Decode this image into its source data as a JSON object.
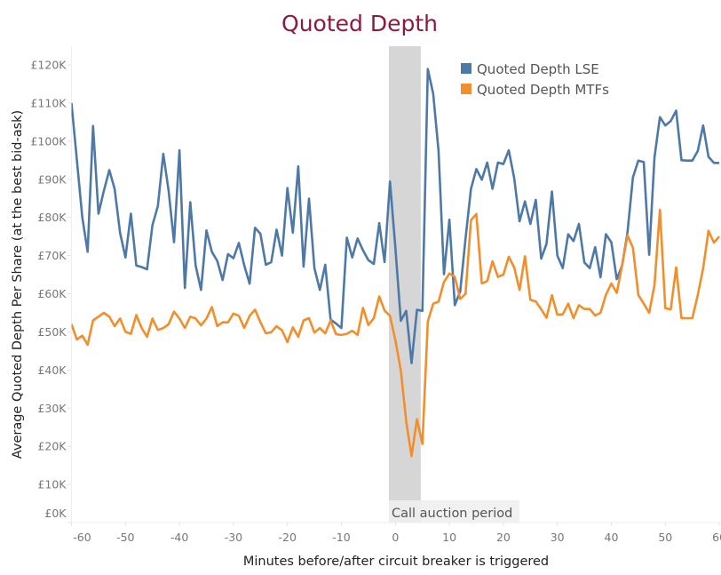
{
  "chart_data": {
    "type": "line",
    "title": "Quoted Depth",
    "xlabel": "Minutes before/after circuit breaker is triggered",
    "ylabel": "Average Quoted Depth Per Share (at the best bid-ask)",
    "xlim": [
      -60,
      60.3
    ],
    "ylim": [
      0,
      120000
    ],
    "x_ticks": [
      -60,
      -50,
      -40,
      -30,
      -20,
      -10,
      0,
      10,
      20,
      30,
      40,
      50,
      60
    ],
    "x_tick_labels": [
      "-60",
      "-50",
      "-40",
      "-30",
      "-20",
      "-10",
      "0",
      "10",
      "20",
      "30",
      "40",
      "50",
      "60"
    ],
    "y_ticks": [
      0,
      10000,
      20000,
      30000,
      40000,
      50000,
      60000,
      70000,
      80000,
      90000,
      100000,
      110000,
      120000
    ],
    "y_tick_labels": [
      "£0K",
      "£10K",
      "£20K",
      "£30K",
      "£40K",
      "£50K",
      "£60K",
      "£70K",
      "£80K",
      "£90K",
      "£100K",
      "£110K",
      "£120K"
    ],
    "grid": false,
    "legend_position": "top-right",
    "annotation": {
      "label": "Call auction period",
      "x_start": -1.2,
      "x_end": 4.7,
      "color": "#d6d6d6"
    },
    "title_color": "#8b1a3c",
    "x": [
      -60,
      -59,
      -58,
      -57,
      -56,
      -55,
      -54,
      -53,
      -52,
      -51,
      -50,
      -49,
      -48,
      -47,
      -46,
      -45,
      -44,
      -43,
      -42,
      -41,
      -40,
      -39,
      -38,
      -37,
      -36,
      -35,
      -34,
      -33,
      -32,
      -31,
      -30,
      -29,
      -28,
      -27,
      -26,
      -25,
      -24,
      -23,
      -22,
      -21,
      -20,
      -19,
      -18,
      -17,
      -16,
      -15,
      -14,
      -13,
      -12,
      -11,
      -10,
      -9,
      -8,
      -7,
      -6,
      -5,
      -4,
      -3,
      -2,
      -1,
      0,
      1,
      2,
      3,
      4,
      5,
      6,
      7,
      8,
      9,
      10,
      11,
      12,
      13,
      14,
      15,
      16,
      17,
      18,
      19,
      20,
      21,
      22,
      23,
      24,
      25,
      26,
      27,
      28,
      29,
      30,
      31,
      32,
      33,
      34,
      35,
      36,
      37,
      38,
      39,
      40,
      41,
      42,
      43,
      44,
      45,
      46,
      47,
      48,
      49,
      50,
      51,
      52,
      53,
      54,
      55,
      56,
      57,
      58,
      59,
      60
    ],
    "series": [
      {
        "name": "Quoted Depth LSE",
        "color": "#4e79a7",
        "values_k": [
          110,
          95,
          80,
          71,
          104,
          81,
          87,
          92.4,
          87.5,
          76,
          69.5,
          81,
          67.4,
          67,
          66.4,
          78,
          83,
          96.7,
          87,
          73.5,
          97.6,
          61.5,
          84,
          67.4,
          61,
          76.6,
          71,
          68.6,
          63.6,
          70.4,
          69.3,
          73.3,
          67.4,
          62.6,
          77.3,
          75.7,
          67.6,
          68.3,
          76.8,
          70,
          87.7,
          76,
          93.4,
          67.1,
          84.9,
          66.7,
          61,
          67.6,
          53.2,
          52.2,
          51,
          74.7,
          69.5,
          74.5,
          71.4,
          68.8,
          67.8,
          78.5,
          68.3,
          89.4,
          72,
          52.9,
          55.5,
          41.8,
          55.8,
          55.5,
          118.9,
          112.4,
          97.4,
          65.1,
          79.4,
          57,
          60.6,
          74.5,
          87.5,
          92.7,
          89.9,
          94.4,
          87.5,
          94.4,
          94,
          97.6,
          90.3,
          79,
          84.2,
          78.3,
          84.6,
          69.2,
          73.1,
          86.8,
          70,
          66.7,
          75.6,
          73.8,
          78.3,
          68.2,
          66.7,
          72.2,
          64.3,
          75.6,
          73.5,
          63.8,
          67.4,
          76.1,
          90.5,
          94.9,
          94.5,
          70.2,
          95.8,
          106.3,
          104.1,
          105.3,
          108,
          95,
          94.9,
          94.9,
          97.4,
          104.1,
          95.9,
          94.3,
          94.3
        ]
      },
      {
        "name": "Quoted Depth MTFs",
        "color": "#f28e2b",
        "values_k": [
          52,
          48,
          49,
          46.6,
          53,
          54,
          55,
          54,
          51.5,
          53.5,
          50,
          49.5,
          54.4,
          51,
          48.7,
          53.5,
          50.5,
          51,
          52,
          55.3,
          53.5,
          51,
          54,
          53.5,
          51.7,
          53.5,
          56.5,
          51.5,
          52.5,
          52.5,
          54.8,
          54.2,
          51,
          54.2,
          55.8,
          52.5,
          49.6,
          49.9,
          51.5,
          50.4,
          47.3,
          51.2,
          48.7,
          53,
          53.6,
          49.8,
          51,
          49.6,
          53,
          49.4,
          49.2,
          49.5,
          50.3,
          49.2,
          56.3,
          51.8,
          53.6,
          59.3,
          55.6,
          54.2,
          47.8,
          39.9,
          26.5,
          17.4,
          27.1,
          20.6,
          52.7,
          57.4,
          57.9,
          63.1,
          65.3,
          64.4,
          58.6,
          60,
          79.3,
          80.9,
          62.7,
          63.3,
          68.5,
          64.4,
          65,
          69.7,
          66.9,
          61,
          69.8,
          58.4,
          58,
          55.9,
          53.7,
          59.6,
          54.5,
          54.6,
          57.4,
          53.6,
          57,
          56,
          56,
          54.3,
          55,
          59.7,
          62.7,
          60.2,
          67.5,
          75.3,
          72.1,
          59.7,
          57.4,
          55,
          62.3,
          82,
          56.2,
          55.9,
          66.9,
          53.6,
          53.6,
          53.6,
          59.6,
          66.7,
          76.5,
          73.4,
          75
        ]
      }
    ]
  }
}
